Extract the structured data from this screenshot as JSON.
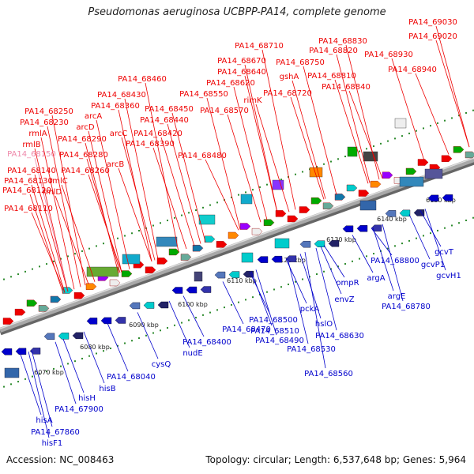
{
  "title": "Pseudomonas aeruginosa UCBPP-PA14, complete genome",
  "footer": {
    "accession": "Accession: NC_008463",
    "summary": "Topology: circular; Length: 6,537,648 bp; Genes: 5,964"
  },
  "colors": {
    "forward_label": "#ee0000",
    "reverse_label": "#0000cc",
    "highlight_label": "#ee88aa",
    "backbone": "#a8a8a8",
    "scale_tick": "#2e8b2e"
  },
  "scale": {
    "ticks": [
      "6070 kbp",
      "6080 kbp",
      "6090 kbp",
      "6100 kbp",
      "6110 kbp",
      "6120 kbp",
      "6130 kbp",
      "6140 kbp",
      "6150 kbp"
    ]
  },
  "genes_forward": [
    "PA14_69030",
    "PA14_69020",
    "PA14_68830",
    "PA14_68710",
    "PA14_68820",
    "PA14_68930",
    "PA14_68670",
    "PA14_68750",
    "PA14_68640",
    "gshA",
    "PA14_68810",
    "PA14_68940",
    "PA14_68460",
    "PA14_68620",
    "PA14_68720",
    "PA14_68840",
    "PA14_68430",
    "PA14_68550",
    "rimK",
    "PA14_68360",
    "PA14_68450",
    "arcA",
    "PA14_68570",
    "PA14_68250",
    "PA14_68440",
    "arcD",
    "PA14_68230",
    "PA14_68420",
    "rmlA",
    "PA14_68290",
    "arcC",
    "PA14_68390",
    "rmlB",
    "PA14_68480",
    "PA14_68280",
    "arcB",
    "PA14_68150",
    "PA14_68140",
    "PA14_68260",
    "PA14_68130",
    "rmlC",
    "PA14_68120",
    "rmlD",
    "PA14_68110"
  ],
  "genes_reverse": [
    "gcvT",
    "gcvP1",
    "gcvH1",
    "PA14_68800",
    "argA",
    "argE",
    "PA14_68780",
    "ompR",
    "envZ",
    "pckA",
    "hslO",
    "PA14_68630",
    "PA14_68500",
    "PA14_68490",
    "PA14_68510",
    "PA14_68530",
    "PA14_68560",
    "PA14_68470",
    "PA14_68400",
    "nudE",
    "cysQ",
    "PA14_68040",
    "hisB",
    "hisH",
    "PA14_67900",
    "hisA",
    "PA14_67860",
    "hisF1"
  ]
}
